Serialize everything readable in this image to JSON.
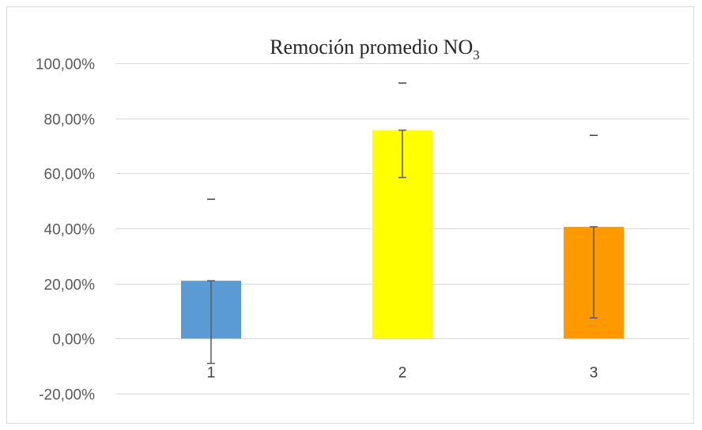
{
  "chart_data": {
    "type": "bar",
    "title": "Remoción promedio NO",
    "title_subscript": "3",
    "xlabel": "",
    "ylabel": "",
    "categories": [
      "1",
      "2",
      "3"
    ],
    "values": [
      21.0,
      75.7,
      40.6
    ],
    "error_bars": [
      {
        "low": -9.0,
        "high": 21.0,
        "cap_marker": 50.6
      },
      {
        "low": 58.5,
        "high": 75.7,
        "cap_marker": 92.8
      },
      {
        "low": 7.5,
        "high": 40.6,
        "cap_marker": 73.8
      }
    ],
    "colors": [
      "#5b9bd5",
      "#ffff00",
      "#ff9900"
    ],
    "ylim": [
      -20,
      100
    ],
    "yticks": [
      -20,
      0,
      20,
      40,
      60,
      80,
      100
    ],
    "ytick_labels": [
      "-20,00%",
      "0,00%",
      "20,00%",
      "40,00%",
      "60,00%",
      "80,00%",
      "100,00%"
    ],
    "grid": true,
    "legend": "none"
  }
}
